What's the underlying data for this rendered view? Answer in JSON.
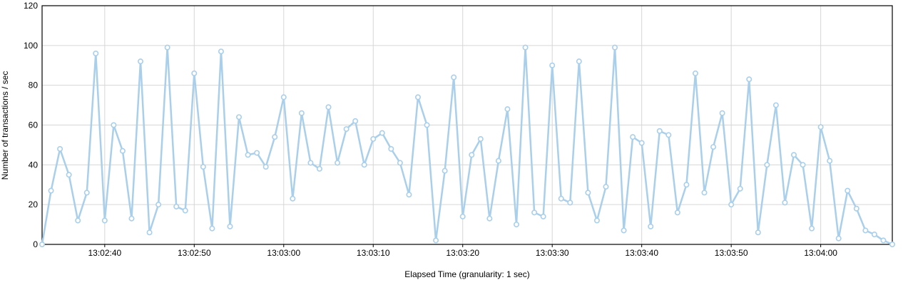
{
  "chart_data": {
    "type": "line",
    "xlabel": "Elapsed Time (granularity: 1 sec)",
    "ylabel": "Number of transactions / sec",
    "ylim": [
      0,
      120
    ],
    "yticks": [
      0,
      20,
      40,
      60,
      80,
      100,
      120
    ],
    "x_start_seconds_offset": 0,
    "x_start_time": "13:02:33",
    "x_end_time": "13:04:08",
    "xticks": [
      "13:02:40",
      "13:02:50",
      "13:03:00",
      "13:03:10",
      "13:03:20",
      "13:03:30",
      "13:03:40",
      "13:03:50",
      "13:04:00"
    ],
    "grid": true,
    "legend": "none",
    "series": [
      {
        "color": "#a9cfeb",
        "values": [
          0,
          27,
          48,
          35,
          12,
          26,
          96,
          12,
          60,
          47,
          13,
          92,
          6,
          20,
          99,
          19,
          17,
          86,
          39,
          8,
          97,
          9,
          64,
          45,
          46,
          39,
          54,
          74,
          23,
          66,
          41,
          38,
          69,
          41,
          58,
          62,
          40,
          53,
          56,
          48,
          41,
          25,
          74,
          60,
          2,
          37,
          84,
          14,
          45,
          53,
          13,
          42,
          68,
          10,
          99,
          16,
          14,
          90,
          23,
          21,
          92,
          26,
          12,
          29,
          99,
          7,
          54,
          51,
          9,
          57,
          55,
          16,
          30,
          86,
          26,
          49,
          66,
          20,
          28,
          83,
          6,
          40,
          70,
          21,
          45,
          40,
          8,
          59,
          42,
          3,
          27,
          18,
          7,
          5,
          2,
          0
        ]
      }
    ]
  }
}
